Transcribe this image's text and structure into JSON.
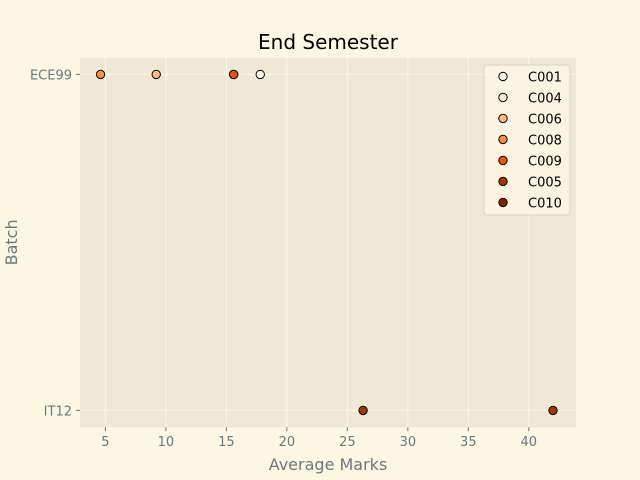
{
  "chart_data": {
    "type": "scatter",
    "title": "End Semester",
    "xlabel": "Average Marks",
    "ylabel": "Batch",
    "categories": [
      "ECE99",
      "IT12"
    ],
    "xlim": [
      2.9,
      43.9
    ],
    "xticks": [
      5,
      10,
      15,
      20,
      25,
      30,
      35,
      40
    ],
    "grid": true,
    "legend_position": "top-right",
    "series": [
      {
        "name": "C001",
        "color": "#fff5eb",
        "points": [
          {
            "x": 17.8,
            "y": "ECE99"
          }
        ]
      },
      {
        "name": "C004",
        "color": "#fee6ce",
        "points": [
          {
            "x": 15.6,
            "y": "ECE99"
          }
        ]
      },
      {
        "name": "C006",
        "color": "#fdbe85",
        "points": [
          {
            "x": 9.2,
            "y": "ECE99"
          }
        ]
      },
      {
        "name": "C008",
        "color": "#fd8d3c",
        "points": [
          {
            "x": 4.6,
            "y": "ECE99"
          }
        ]
      },
      {
        "name": "C009",
        "color": "#e6550d",
        "points": [
          {
            "x": 15.6,
            "y": "ECE99"
          }
        ]
      },
      {
        "name": "C005",
        "color": "#a63603",
        "points": [
          {
            "x": 26.3,
            "y": "IT12"
          },
          {
            "x": 42.0,
            "y": "IT12"
          }
        ]
      },
      {
        "name": "C010",
        "color": "#7f2704",
        "points": []
      }
    ]
  }
}
